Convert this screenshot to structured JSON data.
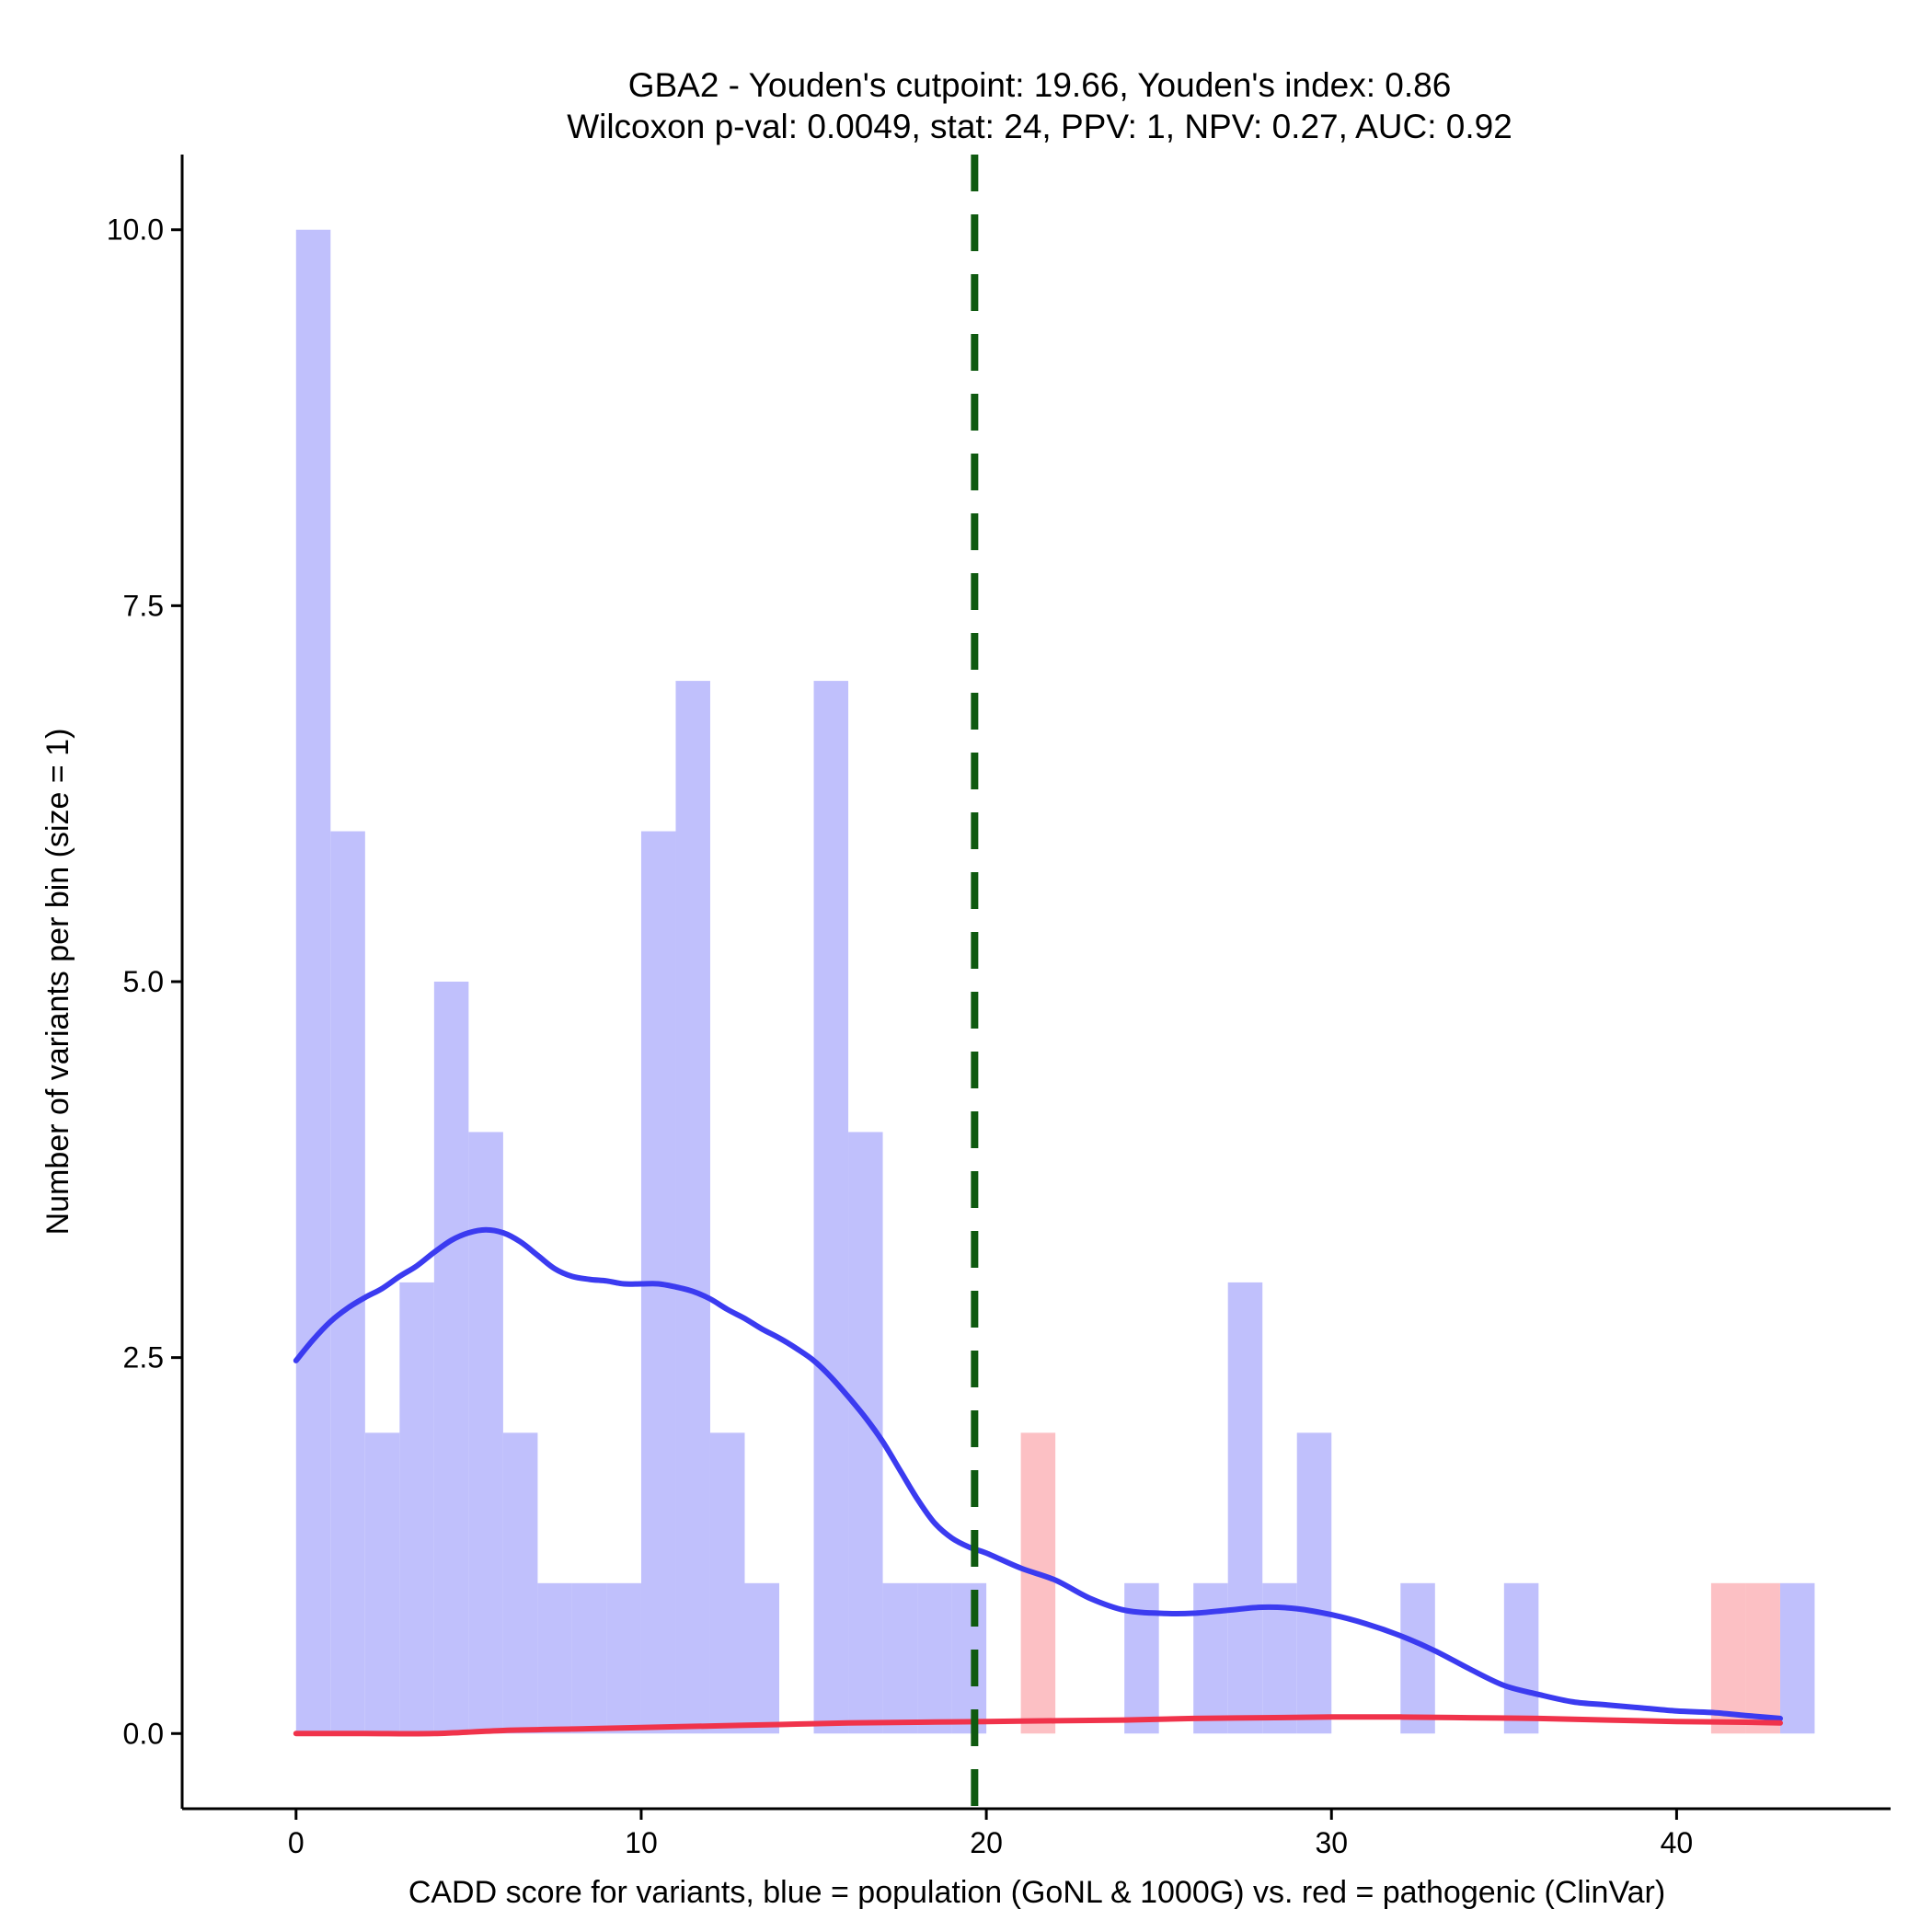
{
  "chart_data": {
    "type": "bar",
    "title": "GBA2 - Youden's cutpoint: 19.66, Youden's index: 0.86",
    "subtitle": "Wilcoxon p-val: 0.0049, stat: 24, PPV: 1, NPV: 0.27, AUC: 0.92",
    "xlabel": "CADD score for variants, blue = population (GoNL & 1000G) vs. red = pathogenic (ClinVar)",
    "ylabel": "Number of variants per bin (size = 1)",
    "xlim": [
      -3.3,
      46.2
    ],
    "ylim": [
      -0.5,
      10.5
    ],
    "x_ticks": [
      0,
      10,
      20,
      30,
      40
    ],
    "x_tick_labels": [
      "0",
      "10",
      "20",
      "30",
      "40"
    ],
    "y_ticks": [
      0,
      2.5,
      5,
      7.5,
      10
    ],
    "y_tick_labels": [
      "0.0",
      "2.5",
      "5.0",
      "7.5",
      "10.0"
    ],
    "bin_width": 1,
    "cutpoint": 19.66,
    "colors": {
      "population_bar": "#c0c0fc",
      "pathogenic_bar": "#fcc0c4",
      "population_line": "#3b3bf0",
      "pathogenic_line": "#f0334b",
      "cutpoint_line": "#0f5a10"
    },
    "series": [
      {
        "name": "population (GoNL & 1000G)",
        "bin_starts": [
          0,
          1,
          2,
          3,
          4,
          5,
          6,
          7,
          8,
          9,
          10,
          11,
          12,
          13,
          15,
          16,
          17,
          18,
          19,
          24,
          26,
          27,
          28,
          29,
          32,
          35,
          43
        ],
        "values": [
          10,
          6,
          2,
          3,
          5,
          4,
          2,
          1,
          1,
          1,
          6,
          7,
          2,
          1,
          7,
          4,
          1,
          1,
          1,
          1,
          1,
          3,
          1,
          2,
          1,
          1,
          1
        ]
      },
      {
        "name": "pathogenic (ClinVar)",
        "bin_starts": [
          21,
          41,
          42
        ],
        "values": [
          2,
          1,
          1
        ]
      }
    ],
    "density_lines": [
      {
        "name": "population density",
        "x": [
          0,
          0.5,
          1,
          1.5,
          2,
          2.5,
          3,
          3.5,
          4,
          4.5,
          5,
          5.5,
          6,
          6.5,
          7,
          7.5,
          8,
          8.5,
          9,
          9.5,
          10,
          10.5,
          11,
          11.5,
          12,
          12.5,
          13,
          13.5,
          14,
          14.5,
          15,
          15.5,
          16,
          16.5,
          17,
          17.5,
          18,
          18.5,
          19,
          19.5,
          20,
          21,
          22,
          23,
          24,
          25,
          26,
          27,
          28,
          29,
          30,
          31,
          32,
          33,
          34,
          35,
          36,
          37,
          38,
          39,
          40,
          41,
          42,
          43
        ],
        "y": [
          2.48,
          2.62,
          2.74,
          2.83,
          2.9,
          2.96,
          3.04,
          3.11,
          3.2,
          3.28,
          3.33,
          3.35,
          3.33,
          3.27,
          3.18,
          3.09,
          3.04,
          3.02,
          3.01,
          2.99,
          2.99,
          2.99,
          2.97,
          2.94,
          2.89,
          2.82,
          2.76,
          2.69,
          2.63,
          2.56,
          2.48,
          2.37,
          2.24,
          2.1,
          1.94,
          1.75,
          1.56,
          1.4,
          1.3,
          1.24,
          1.2,
          1.1,
          1.02,
          0.9,
          0.82,
          0.8,
          0.8,
          0.82,
          0.84,
          0.83,
          0.79,
          0.73,
          0.65,
          0.55,
          0.43,
          0.32,
          0.26,
          0.21,
          0.19,
          0.17,
          0.15,
          0.14,
          0.12,
          0.1
        ]
      },
      {
        "name": "pathogenic density",
        "x": [
          0,
          2,
          4,
          6,
          8,
          10,
          12,
          14,
          16,
          18,
          20,
          22,
          24,
          26,
          28,
          30,
          32,
          34,
          36,
          38,
          40,
          42,
          43
        ],
        "y": [
          0.0,
          0.0,
          0.0,
          0.02,
          0.03,
          0.04,
          0.05,
          0.06,
          0.07,
          0.075,
          0.08,
          0.085,
          0.09,
          0.1,
          0.105,
          0.11,
          0.11,
          0.105,
          0.1,
          0.09,
          0.08,
          0.075,
          0.07
        ]
      }
    ]
  }
}
